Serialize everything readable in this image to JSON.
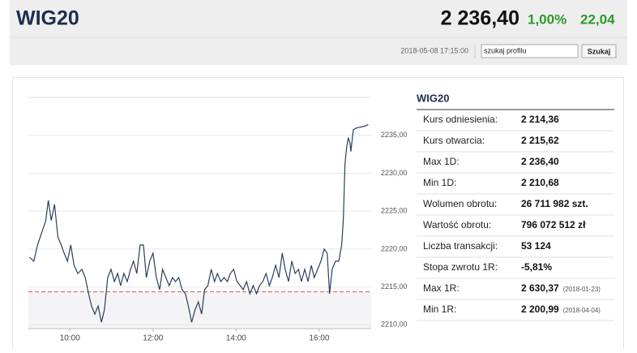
{
  "header": {
    "title": "WIG20",
    "price": "2 236,40",
    "change_pct": "1,00%",
    "change": "22,04",
    "timestamp": "2018-05-08 17:15:00",
    "search_placeholder": "szukaj profilu",
    "search_button": "Szukaj"
  },
  "chart_data": {
    "type": "line",
    "color": "#2c3e5c",
    "reference": 2214.36,
    "reference_color": "#e05050",
    "grid": true,
    "x": [
      9.03,
      9.13,
      9.22,
      9.32,
      9.42,
      9.48,
      9.55,
      9.63,
      9.71,
      9.79,
      9.86,
      9.94,
      10.02,
      10.1,
      10.19,
      10.29,
      10.37,
      10.45,
      10.52,
      10.6,
      10.68,
      10.76,
      10.83,
      10.91,
      10.99,
      11.07,
      11.15,
      11.22,
      11.3,
      11.38,
      11.46,
      11.53,
      11.61,
      11.69,
      11.77,
      11.84,
      11.92,
      12.0,
      12.08,
      12.16,
      12.23,
      12.31,
      12.39,
      12.47,
      12.54,
      12.62,
      12.7,
      12.78,
      12.85,
      12.93,
      13.01,
      13.09,
      13.17,
      13.24,
      13.32,
      13.4,
      13.48,
      13.55,
      13.63,
      13.71,
      13.79,
      13.86,
      13.94,
      14.02,
      14.1,
      14.17,
      14.25,
      14.33,
      14.41,
      14.49,
      14.56,
      14.64,
      14.72,
      14.8,
      14.87,
      14.95,
      15.03,
      15.11,
      15.18,
      15.26,
      15.34,
      15.42,
      15.5,
      15.57,
      15.65,
      15.73,
      15.81,
      15.88,
      15.96,
      16.04,
      16.12,
      16.19,
      16.25,
      16.31,
      16.39,
      16.47,
      16.54,
      16.58,
      16.62,
      16.66,
      16.7,
      16.74,
      16.76,
      16.82,
      16.89,
      17.09,
      17.18
    ],
    "values": [
      2218.92,
      2218.39,
      2220.53,
      2222.14,
      2223.75,
      2226.43,
      2223.75,
      2225.89,
      2221.6,
      2220.53,
      2219.46,
      2218.39,
      2220.53,
      2217.85,
      2216.78,
      2217.32,
      2216.24,
      2214.1,
      2212.49,
      2211.42,
      2212.49,
      2210.35,
      2211.96,
      2216.24,
      2217.32,
      2215.71,
      2216.78,
      2215.17,
      2216.78,
      2215.71,
      2217.32,
      2218.39,
      2216.78,
      2220.53,
      2220.53,
      2216.24,
      2218.39,
      2219.46,
      2216.24,
      2214.64,
      2217.32,
      2216.24,
      2215.17,
      2216.24,
      2215.71,
      2216.24,
      2214.64,
      2214.1,
      2212.49,
      2210.35,
      2211.96,
      2213.03,
      2211.42,
      2214.64,
      2215.17,
      2217.32,
      2215.71,
      2216.78,
      2215.71,
      2216.24,
      2215.71,
      2216.78,
      2217.32,
      2215.71,
      2215.17,
      2214.64,
      2215.71,
      2214.1,
      2215.17,
      2214.1,
      2215.17,
      2215.71,
      2216.78,
      2215.17,
      2216.24,
      2217.85,
      2216.24,
      2219.46,
      2217.32,
      2215.71,
      2218.39,
      2216.78,
      2217.32,
      2215.71,
      2217.32,
      2215.71,
      2217.85,
      2216.24,
      2217.32,
      2218.39,
      2220.0,
      2219.46,
      2214.1,
      2217.32,
      2218.39,
      2218.39,
      2220.53,
      2223.75,
      2231.25,
      2233.39,
      2234.68,
      2233.93,
      2232.86,
      2235.75,
      2235.96,
      2236.2,
      2236.4
    ],
    "xlim": [
      9.0,
      17.25
    ],
    "ylim": [
      2209.5,
      2240
    ],
    "xticks": [
      {
        "value": 10,
        "label": "10:00"
      },
      {
        "value": 12,
        "label": "12:00"
      },
      {
        "value": 14,
        "label": "14:00"
      },
      {
        "value": 16,
        "label": "16:00"
      }
    ],
    "yticks": [
      {
        "value": 2210,
        "label": "2210,00"
      },
      {
        "value": 2215,
        "label": "2215,00"
      },
      {
        "value": 2220,
        "label": "2220,00"
      },
      {
        "value": 2225,
        "label": "2225,00"
      },
      {
        "value": 2230,
        "label": "2230,00"
      },
      {
        "value": 2235,
        "label": "2235,00"
      }
    ]
  },
  "table": {
    "title": "WIG20",
    "rows": [
      [
        "Kurs odniesienia:",
        "2 214,36"
      ],
      [
        "Kurs otwarcia:",
        "2 215,62"
      ],
      [
        "Max 1D:",
        "2 236,40"
      ],
      [
        "Min 1D:",
        "2 210,68"
      ],
      [
        "Wolumen obrotu:",
        "26 711 982 szt."
      ],
      [
        "Wartość obrotu:",
        "796 072 512 zł"
      ],
      [
        "Liczba transakcji:",
        "53 124"
      ],
      [
        "Stopa zwrotu 1R:",
        "-5,81%"
      ],
      [
        "Max 1R:",
        "2 630,37",
        "(2018-01-23)"
      ],
      [
        "Min 1R:",
        "2 200,99",
        "(2018-04-04)"
      ]
    ]
  }
}
